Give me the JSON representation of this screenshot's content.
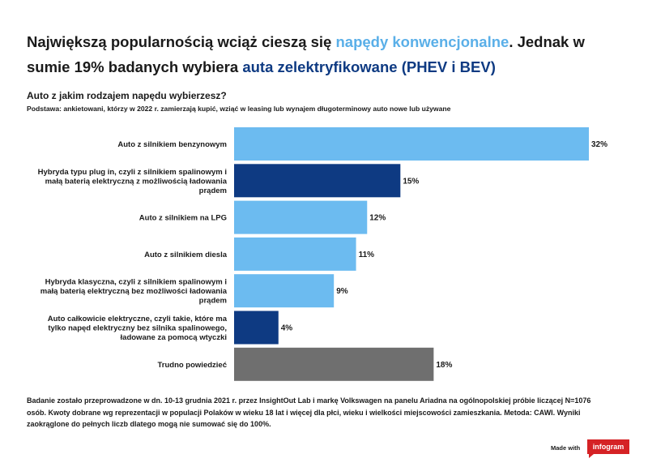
{
  "headline": {
    "part1": "Największą popularnością wciąż cieszą się ",
    "highlight1": "napędy konwencjonalne",
    "part2": ". Jednak w sumie 19% badanych wybiera ",
    "highlight2": "auta zelektryfikowane (PHEV i BEV)"
  },
  "question": "Auto z jakim rodzajem napędu wybierzesz?",
  "base_note": "Podstawa: ankietowani, którzy w 2022 r. zamierzają kupić, wziąć w leasing lub wynajem długoterminowy auto nowe lub używane",
  "chart_data": {
    "type": "bar",
    "orientation": "horizontal",
    "categories": [
      "Auto z silnikiem benzynowym",
      "Hybryda typu plug in, czyli z silnikiem spalinowym i małą baterią elektryczną z możliwością ładowania prądem",
      "Auto z silnikiem na LPG",
      "Auto z silnikiem diesla",
      "Hybryda klasyczna, czyli z silnikiem spalinowym i małą baterią elektryczną bez możliwości ładowania prądem",
      "Auto całkowicie elektryczne, czyli takie, które ma tylko napęd elektryczny bez silnika spalinowego, ładowane za pomocą wtyczki",
      "Trudno powiedzieć"
    ],
    "category_lines": [
      [
        "Auto z silnikiem benzynowym"
      ],
      [
        "Hybryda typu plug in, czyli z silnikiem spalinowym i",
        "małą baterią elektryczną z możliwością ładowania",
        "prądem"
      ],
      [
        "Auto z silnikiem na LPG"
      ],
      [
        "Auto z silnikiem diesla"
      ],
      [
        "Hybryda klasyczna, czyli z silnikiem spalinowym i",
        "małą baterią elektryczną bez możliwości ładowania",
        "prądem"
      ],
      [
        "Auto całkowicie elektryczne, czyli takie, które ma",
        "tylko napęd elektryczny bez silnika spalinowego,",
        "ładowane za pomocą wtyczki"
      ],
      [
        "Trudno powiedzieć"
      ]
    ],
    "values": [
      32,
      15,
      12,
      11,
      9,
      4,
      18
    ],
    "value_labels": [
      "32%",
      "15%",
      "12%",
      "11%",
      "9%",
      "4%",
      "18%"
    ],
    "bar_colors": [
      "#6cbbf0",
      "#0e3a82",
      "#6cbbf0",
      "#6cbbf0",
      "#6cbbf0",
      "#0e3a82",
      "#6f6f6f"
    ],
    "xlim": [
      0,
      32
    ],
    "grid": false,
    "legend": "none",
    "title": "",
    "xlabel": "",
    "ylabel": ""
  },
  "footnote": "Badanie zostało przeprowadzone w dn. 10-13 grudnia 2021 r. przez InsightOut Lab i markę Volkswagen na panelu Ariadna na ogólnopolskiej próbie liczącej N=1076 osób. Kwoty dobrane wg reprezentacji w populacji Polaków w wieku 18 lat i więcej dla płci, wieku i wielkości miejscowości zamieszkania. Metoda: CAWI. Wyniki zaokrąglone do pełnych liczb dlatego mogą nie sumować się do 100%.",
  "branding": {
    "made_with": "Made with",
    "logo": "infogram"
  }
}
